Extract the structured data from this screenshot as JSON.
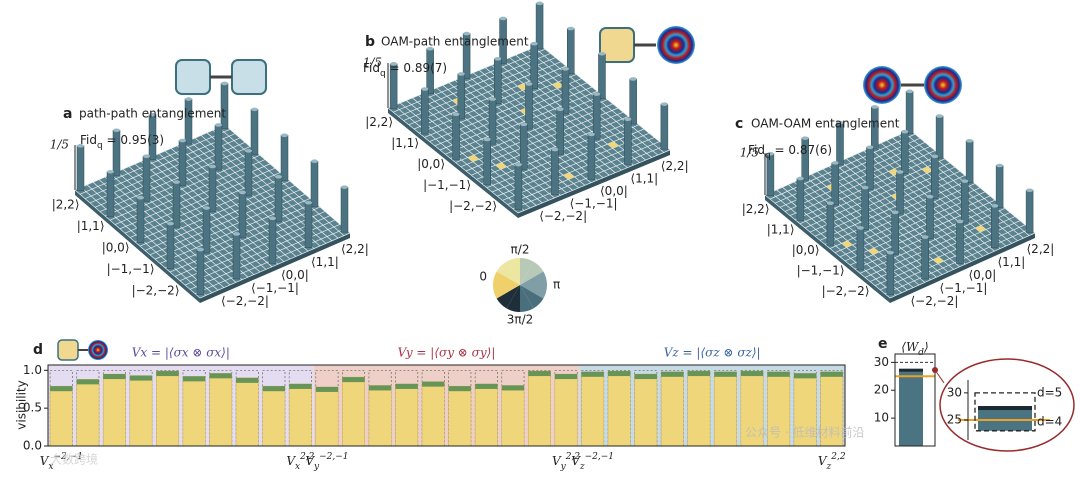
{
  "panels": [
    {
      "letter": "a",
      "title": "path-path entanglement",
      "fid": {
        "text": "Fid",
        "sub": "q",
        "value": " = 0.95(3)"
      },
      "scale": "1/5",
      "kets": [
        "|2,2⟩",
        "|1,1⟩",
        "|0,0⟩",
        "|−1,−1⟩",
        "|−2,−2⟩"
      ],
      "bras": [
        "⟨−2,−2|",
        "⟨−1,−1|",
        "⟨0,0|",
        "⟨1,1|",
        "⟨2,2|"
      ]
    },
    {
      "letter": "b",
      "title": "OAM-path entanglement",
      "fid": {
        "text": "Fid",
        "sub": "q",
        "value": " = 0.89(7)"
      },
      "scale": "1/5",
      "kets": [
        "|2,2⟩",
        "|1,1⟩",
        "|0,0⟩",
        "|−1,−1⟩",
        "|−2,−2⟩"
      ],
      "bras": [
        "⟨−2,−2|",
        "⟨−1,−1|",
        "⟨0,0|",
        "⟨1,1|",
        "⟨2,2|"
      ]
    },
    {
      "letter": "c",
      "title": "OAM-OAM entanglement",
      "fid": {
        "text": "Fid",
        "sub": "q",
        "value": " = 0.87(6)"
      },
      "scale": "1/5",
      "kets": [
        "|2,2⟩",
        "|1,1⟩",
        "|0,0⟩",
        "|−1,−1⟩",
        "|−2,−2⟩"
      ],
      "bras": [
        "⟨−2,−2|",
        "⟨−1,−1|",
        "⟨0,0|",
        "⟨1,1|",
        "⟨2,2|"
      ]
    }
  ],
  "phase_legend": {
    "labels": [
      "π/2",
      "π",
      "3π/2",
      "0"
    ]
  },
  "chart_data": [
    {
      "type": "bar",
      "letter": "d",
      "ylabel": "visibility",
      "ylim": [
        0,
        1.07
      ],
      "yticks": [
        {
          "value": 0,
          "label": "0.0"
        },
        {
          "value": 0.5,
          "label": "0.5"
        },
        {
          "value": 1,
          "label": "1.0"
        }
      ],
      "bar_color": "#f0d67a",
      "cap_color": "#4f8a52",
      "groups": [
        {
          "label": "Vx = |⟨σx ⊗ σx⟩|",
          "color": "#e4dcf0",
          "title_color": "#5a4aa0",
          "first": {
            "base": "V",
            "sub": "x",
            "sup": "−2,−1"
          },
          "last": {
            "base": "V",
            "sub": "x",
            "sup": "2,2"
          },
          "values": [
            0.79,
            0.88,
            0.95,
            0.93,
            0.99,
            0.92,
            0.96,
            0.9,
            0.79,
            0.82
          ]
        },
        {
          "label": "Vy = |⟨σy ⊗ σy⟩|",
          "color": "#efd0c8",
          "title_color": "#a83448",
          "first": {
            "base": "V",
            "sub": "y",
            "sup": "−2,−1"
          },
          "last": {
            "base": "V",
            "sub": "y",
            "sup": "2,2"
          },
          "values": [
            0.78,
            0.91,
            0.8,
            0.82,
            0.85,
            0.79,
            0.82,
            0.8,
            0.99,
            0.95
          ]
        },
        {
          "label": "Vz = |⟨σz ⊗ σz⟩|",
          "color": "#c6dbe6",
          "title_color": "#3a64a8",
          "first": {
            "base": "V",
            "sub": "z",
            "sup": "−2,−1"
          },
          "last": {
            "base": "V",
            "sub": "z",
            "sup": "2,2"
          },
          "values": [
            0.98,
            0.99,
            0.95,
            0.98,
            0.99,
            0.98,
            0.99,
            0.98,
            0.96,
            0.98
          ]
        }
      ]
    },
    {
      "type": "bar",
      "letter": "e",
      "title": {
        "text": "⟨W",
        "sub": "d",
        "end": "⟩"
      },
      "values": [
        27.2
      ],
      "color": "#4a7482",
      "ylim": [
        0,
        33
      ],
      "yticks": [
        10,
        20,
        30
      ],
      "bounds": [
        {
          "label": "d=4",
          "value": 25,
          "color": "#f0a020"
        },
        {
          "label": "d=5",
          "value": 30,
          "color": "#333333"
        }
      ],
      "inset": {
        "ylim": [
          23,
          32
        ],
        "yticks": [
          25,
          30
        ]
      }
    }
  ],
  "watermarks": [
    "公众号 · 低维材料前沿",
    "大数跨境"
  ]
}
